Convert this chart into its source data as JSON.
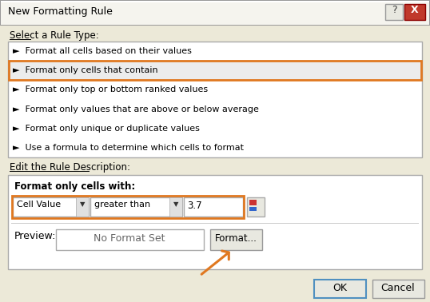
{
  "title": "New Formatting Rule",
  "bg_color": "#ece9d8",
  "dialog_bg": "#ece9d8",
  "white": "#ffffff",
  "title_bar_bg": "#f5f4ee",
  "section1_label": "Select a Rule Type:",
  "rule_items": [
    "►  Format all cells based on their values",
    "►  Format only cells that contain",
    "►  Format only top or bottom ranked values",
    "►  Format only values that are above or below average",
    "►  Format only unique or duplicate values",
    "►  Use a formula to determine which cells to format"
  ],
  "selected_rule_index": 1,
  "selected_rule_highlight": "#ececec",
  "selected_rule_border": "#e07820",
  "section2_label": "Edit the Rule Description:",
  "format_label": "Format only cells with:",
  "cell_value_text": "Cell Value",
  "condition_text": "greater than",
  "value_text": "3.7",
  "condition_border": "#e07820",
  "preview_label": "Preview:",
  "preview_text": "No Format Set",
  "format_btn": "Format...",
  "ok_btn": "OK",
  "cancel_btn": "Cancel",
  "arrow_color": "#e07820",
  "close_btn_color": "#c0392b",
  "border_color": "#999999",
  "list_border": "#aaaaaa",
  "ok_border": "#5090c0"
}
